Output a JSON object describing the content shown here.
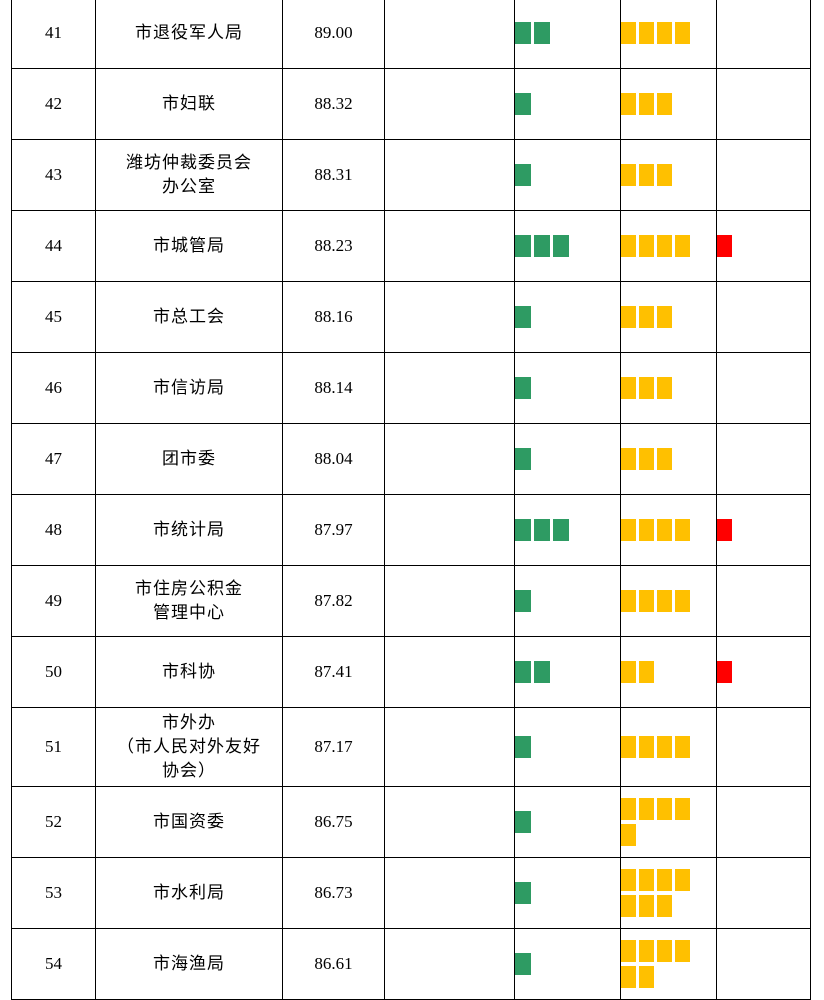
{
  "colors": {
    "green": "#2e9b63",
    "yellow": "#ffc000",
    "red": "#ff0000"
  },
  "rows": [
    {
      "rank": "41",
      "name": [
        "市退役军人局"
      ],
      "score": "89.00",
      "green": 2,
      "yellow": 4,
      "red": 0,
      "height": 71
    },
    {
      "rank": "42",
      "name": [
        "市妇联"
      ],
      "score": "88.32",
      "green": 1,
      "yellow": 3,
      "red": 0,
      "height": 71
    },
    {
      "rank": "43",
      "name": [
        "潍坊仲裁委员会",
        "办公室"
      ],
      "score": "88.31",
      "green": 1,
      "yellow": 3,
      "red": 0,
      "height": 71
    },
    {
      "rank": "44",
      "name": [
        "市城管局"
      ],
      "score": "88.23",
      "green": 3,
      "yellow": 4,
      "red": 1,
      "height": 71
    },
    {
      "rank": "45",
      "name": [
        "市总工会"
      ],
      "score": "88.16",
      "green": 1,
      "yellow": 3,
      "red": 0,
      "height": 71
    },
    {
      "rank": "46",
      "name": [
        "市信访局"
      ],
      "score": "88.14",
      "green": 1,
      "yellow": 3,
      "red": 0,
      "height": 71
    },
    {
      "rank": "47",
      "name": [
        "团市委"
      ],
      "score": "88.04",
      "green": 1,
      "yellow": 3,
      "red": 0,
      "height": 71
    },
    {
      "rank": "48",
      "name": [
        "市统计局"
      ],
      "score": "87.97",
      "green": 3,
      "yellow": 4,
      "red": 1,
      "height": 71
    },
    {
      "rank": "49",
      "name": [
        "市住房公积金",
        "管理中心"
      ],
      "score": "87.82",
      "green": 1,
      "yellow": 4,
      "red": 0,
      "height": 71
    },
    {
      "rank": "50",
      "name": [
        "市科协"
      ],
      "score": "87.41",
      "green": 2,
      "yellow": 2,
      "red": 1,
      "height": 71
    },
    {
      "rank": "51",
      "name": [
        "市外办",
        "（市人民对外友好",
        "协会）"
      ],
      "score": "87.17",
      "green": 1,
      "yellow": 4,
      "red": 0,
      "height": 79
    },
    {
      "rank": "52",
      "name": [
        "市国资委"
      ],
      "score": "86.75",
      "green": 1,
      "yellow": 5,
      "red": 0,
      "height": 71
    },
    {
      "rank": "53",
      "name": [
        "市水利局"
      ],
      "score": "86.73",
      "green": 1,
      "yellow": 7,
      "red": 0,
      "height": 71
    },
    {
      "rank": "54",
      "name": [
        "市海渔局"
      ],
      "score": "86.61",
      "green": 1,
      "yellow": 6,
      "red": 0,
      "height": 71
    }
  ]
}
